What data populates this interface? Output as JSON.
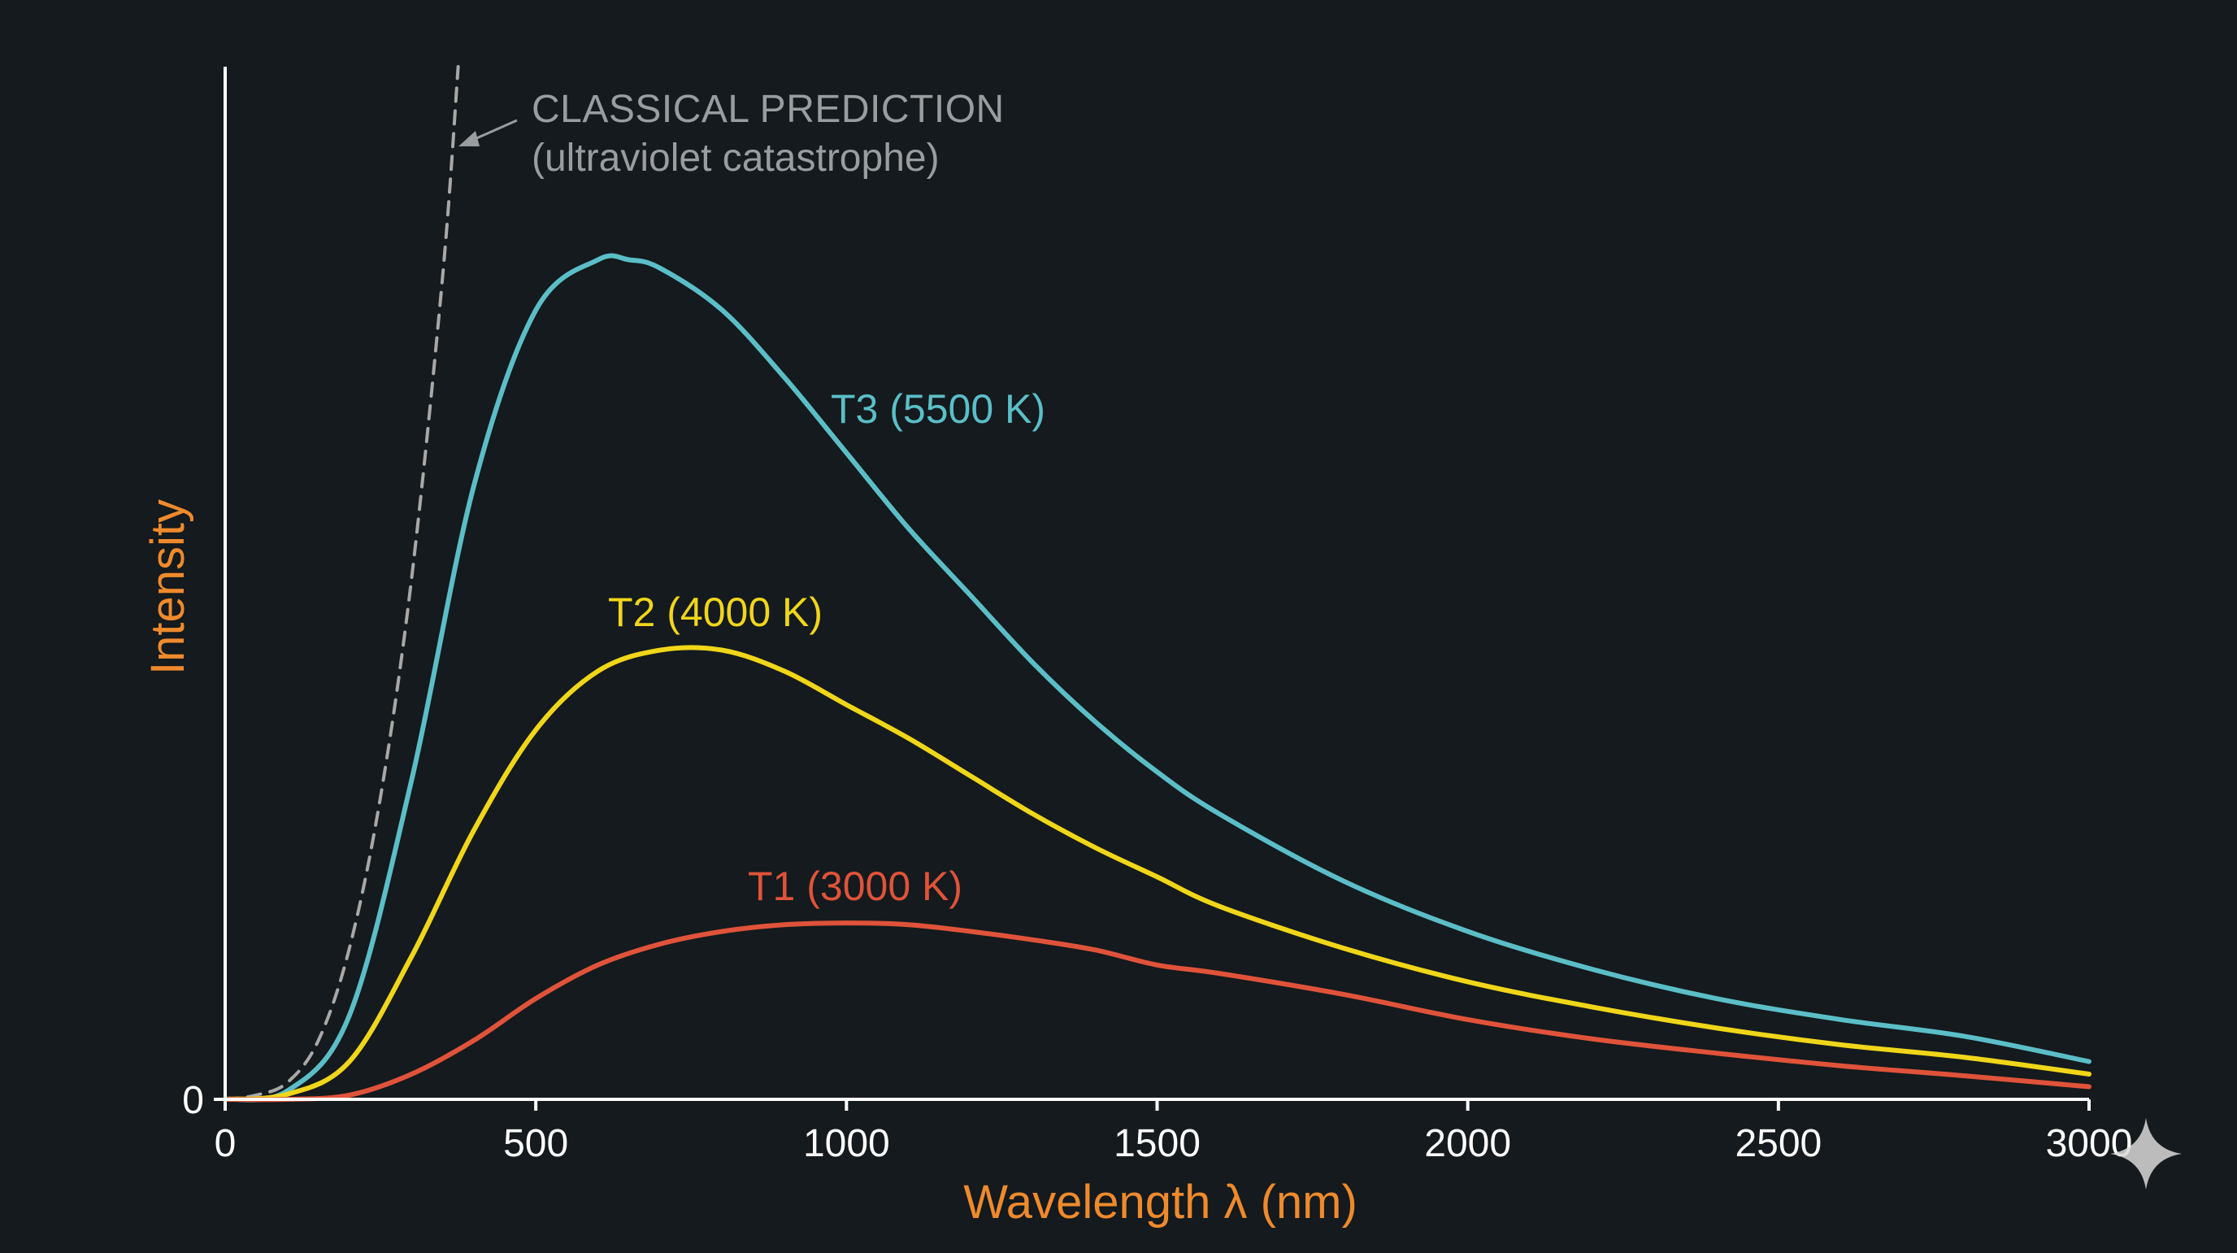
{
  "chart_data": {
    "type": "line",
    "xlabel": "Wavelength λ (nm)",
    "ylabel": "Intensity",
    "xlim": [
      0,
      3000
    ],
    "ylim": [
      0,
      1.23
    ],
    "x_ticks": [
      "0",
      "500",
      "1000",
      "1500",
      "2000",
      "2500",
      "3000"
    ],
    "x_tick_values": [
      0,
      500,
      1000,
      1500,
      2000,
      2500,
      3000
    ],
    "y_ticks": [
      "0"
    ],
    "grid": false,
    "colors": {
      "background": "#141a1d",
      "axis": "#ffffff",
      "axis_title": "#ef8a2c"
    },
    "series": [
      {
        "name": "T3 (5500 K)",
        "color": "#5bbec7",
        "x": [
          0,
          100,
          200,
          300,
          400,
          500,
          600,
          650,
          700,
          800,
          900,
          1000,
          1100,
          1200,
          1300,
          1400,
          1500,
          1600,
          1800,
          2000,
          2200,
          2400,
          2600,
          2800,
          3000
        ],
        "y": [
          0,
          0.01,
          0.1,
          0.38,
          0.73,
          0.94,
          1.0,
          1.0,
          0.99,
          0.94,
          0.86,
          0.77,
          0.68,
          0.6,
          0.52,
          0.45,
          0.39,
          0.34,
          0.26,
          0.2,
          0.155,
          0.12,
          0.095,
          0.075,
          0.045
        ]
      },
      {
        "name": "T2 (4000 K)",
        "color": "#f0d619",
        "x": [
          0,
          100,
          200,
          300,
          400,
          500,
          600,
          700,
          800,
          900,
          1000,
          1100,
          1200,
          1300,
          1400,
          1500,
          1600,
          1800,
          2000,
          2200,
          2400,
          2600,
          2800,
          3000
        ],
        "y": [
          0,
          0.006,
          0.045,
          0.17,
          0.32,
          0.44,
          0.51,
          0.535,
          0.535,
          0.51,
          0.47,
          0.43,
          0.385,
          0.34,
          0.3,
          0.265,
          0.23,
          0.18,
          0.14,
          0.11,
          0.085,
          0.065,
          0.05,
          0.03
        ]
      },
      {
        "name": "T1 (3000 K)",
        "color": "#e0533a",
        "x": [
          0,
          100,
          200,
          300,
          400,
          500,
          600,
          700,
          800,
          900,
          1000,
          1100,
          1200,
          1300,
          1400,
          1500,
          1600,
          1800,
          2000,
          2200,
          2400,
          2600,
          2800,
          3000
        ],
        "y": [
          0,
          0.0,
          0.005,
          0.03,
          0.07,
          0.12,
          0.16,
          0.185,
          0.2,
          0.208,
          0.21,
          0.208,
          0.2,
          0.19,
          0.178,
          0.16,
          0.15,
          0.125,
          0.095,
          0.072,
          0.055,
          0.04,
          0.028,
          0.015
        ]
      },
      {
        "name": "CLASSICAL PREDICTION",
        "color": "#a8a8a8",
        "dashed": true,
        "x": [
          0,
          50,
          100,
          150,
          200,
          250,
          300,
          350,
          375
        ],
        "y": [
          0,
          0.005,
          0.02,
          0.07,
          0.18,
          0.36,
          0.62,
          0.98,
          1.23
        ]
      }
    ],
    "annotations": [
      {
        "title": "CLASSICAL PREDICTION",
        "subtitle": "(ultraviolet catastrophe)",
        "color": "#9a9d9f"
      }
    ]
  }
}
